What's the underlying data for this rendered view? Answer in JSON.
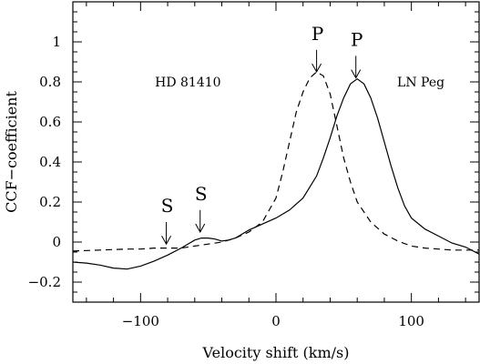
{
  "chart_data": {
    "type": "line",
    "xlabel": "Velocity shift (km/s)",
    "ylabel": "CCF−coefficient",
    "xlim": [
      -150,
      150
    ],
    "ylim": [
      -0.3,
      1.2
    ],
    "xticks": [
      -100,
      0,
      100
    ],
    "xtick_labels": [
      "−100",
      "0",
      "100"
    ],
    "yticks": [
      -0.2,
      0,
      0.2,
      0.4,
      0.6,
      0.8,
      1
    ],
    "ytick_labels": [
      "−0.2",
      "0",
      "0.2",
      "0.4",
      "0.6",
      "0.8",
      "1"
    ],
    "grid": false,
    "series": [
      {
        "name": "LN Peg",
        "style": "solid",
        "x": [
          -150,
          -140,
          -130,
          -120,
          -110,
          -100,
          -90,
          -80,
          -70,
          -60,
          -55,
          -50,
          -45,
          -40,
          -35,
          -30,
          -20,
          -10,
          0,
          10,
          20,
          30,
          35,
          40,
          45,
          50,
          55,
          60,
          65,
          70,
          75,
          80,
          85,
          90,
          95,
          100,
          110,
          120,
          130,
          140,
          150
        ],
        "y": [
          -0.1,
          -0.105,
          -0.115,
          -0.13,
          -0.135,
          -0.12,
          -0.095,
          -0.065,
          -0.03,
          0.01,
          0.02,
          0.02,
          0.015,
          0.005,
          0.01,
          0.02,
          0.06,
          0.09,
          0.12,
          0.16,
          0.22,
          0.33,
          0.42,
          0.52,
          0.63,
          0.72,
          0.79,
          0.815,
          0.79,
          0.72,
          0.62,
          0.5,
          0.38,
          0.27,
          0.18,
          0.12,
          0.065,
          0.03,
          -0.005,
          -0.025,
          -0.06
        ]
      },
      {
        "name": "HD 81410",
        "style": "dashed",
        "x": [
          -150,
          -130,
          -110,
          -100,
          -90,
          -80,
          -70,
          -60,
          -50,
          -40,
          -30,
          -20,
          -10,
          0,
          5,
          10,
          15,
          20,
          25,
          30,
          35,
          40,
          45,
          50,
          55,
          60,
          70,
          80,
          90,
          100,
          110,
          120,
          130,
          140,
          150
        ],
        "y": [
          -0.045,
          -0.04,
          -0.035,
          -0.035,
          -0.03,
          -0.03,
          -0.03,
          -0.02,
          -0.01,
          0.0,
          0.02,
          0.05,
          0.1,
          0.22,
          0.35,
          0.5,
          0.65,
          0.75,
          0.82,
          0.85,
          0.83,
          0.74,
          0.58,
          0.42,
          0.3,
          0.2,
          0.1,
          0.04,
          0.005,
          -0.02,
          -0.03,
          -0.035,
          -0.04,
          -0.04,
          -0.04
        ]
      }
    ],
    "annotations": [
      {
        "text": "HD 81410",
        "kind": "label",
        "x": -65,
        "y": 0.8
      },
      {
        "text": "LN Peg",
        "kind": "label",
        "x": 107,
        "y": 0.8
      },
      {
        "text": "P",
        "kind": "peak",
        "x": 30,
        "y": 0.85,
        "arrow_from": 0.96,
        "text_y": 1.01
      },
      {
        "text": "P",
        "kind": "peak",
        "x": 59,
        "y": 0.82,
        "arrow_from": 0.93,
        "text_y": 0.98
      },
      {
        "text": "S",
        "kind": "peak",
        "x": -81,
        "y": -0.01,
        "arrow_from": 0.1,
        "text_y": 0.15
      },
      {
        "text": "S",
        "kind": "peak",
        "x": -56,
        "y": 0.05,
        "arrow_from": 0.16,
        "text_y": 0.21
      }
    ]
  }
}
